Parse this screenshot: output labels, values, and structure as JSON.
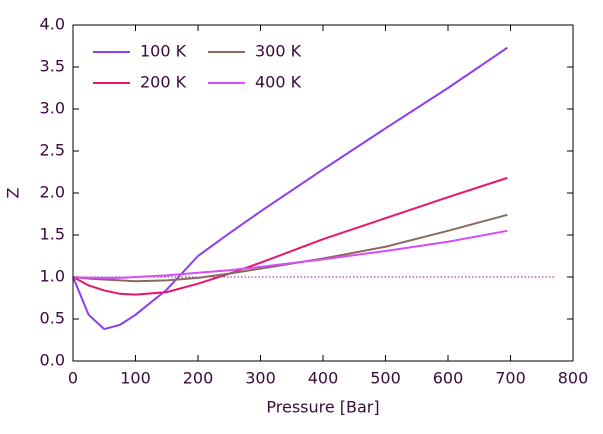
{
  "chart_data": {
    "type": "line",
    "x_label": "Pressure [Bar]",
    "y_label": "Z",
    "xlim": [
      0,
      800
    ],
    "ylim": [
      0,
      4
    ],
    "xticks": [
      0,
      100,
      200,
      300,
      400,
      500,
      600,
      700,
      800
    ],
    "yticks": [
      {
        "value": 0,
        "label": "0.0"
      },
      0.5,
      {
        "value": 1,
        "label": "1.0"
      },
      1.5,
      {
        "value": 2,
        "label": "2.0"
      },
      2.5,
      {
        "value": 3,
        "label": "3.0"
      },
      3.5,
      {
        "value": 4,
        "label": "4.0"
      }
    ],
    "x": [
      0,
      25,
      50,
      75,
      100,
      150,
      200,
      250,
      300,
      400,
      500,
      600,
      695
    ],
    "series": [
      {
        "name": "100 K",
        "color": "#8a3ff0",
        "values": [
          1.0,
          0.55,
          0.38,
          0.43,
          0.55,
          0.85,
          1.25,
          1.52,
          1.78,
          2.28,
          2.77,
          3.25,
          3.73
        ]
      },
      {
        "name": "200 K",
        "color": "#e8156b",
        "values": [
          1.0,
          0.9,
          0.84,
          0.8,
          0.79,
          0.82,
          0.92,
          1.04,
          1.17,
          1.45,
          1.7,
          1.95,
          2.18
        ]
      },
      {
        "name": "300 K",
        "color": "#8a6a5c",
        "values": [
          1.0,
          0.98,
          0.97,
          0.96,
          0.95,
          0.96,
          0.99,
          1.04,
          1.1,
          1.22,
          1.36,
          1.55,
          1.74
        ]
      },
      {
        "name": "400 K",
        "color": "#d64cf6",
        "values": [
          1.0,
          0.99,
          0.99,
          0.99,
          1.0,
          1.02,
          1.05,
          1.08,
          1.12,
          1.21,
          1.31,
          1.42,
          1.55
        ]
      }
    ],
    "reference_line": {
      "y": 1,
      "x": [
        0,
        770
      ],
      "color": "#8a1a8a"
    },
    "legend": "upper-left"
  }
}
